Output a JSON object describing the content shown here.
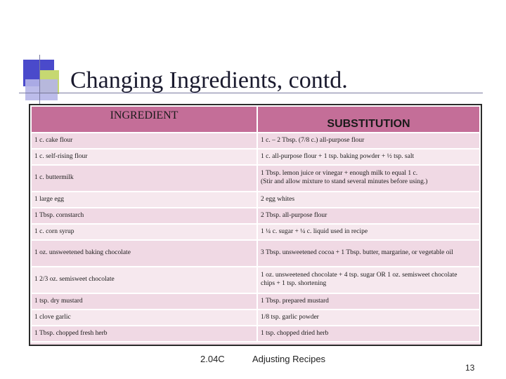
{
  "slide": {
    "title": "Changing Ingredients, contd.",
    "footer_code": "2.04C",
    "footer_title": "Adjusting Recipes",
    "page_number": "13"
  },
  "table": {
    "headers": {
      "ingredient": "INGREDIENT",
      "substitution": "SUBSTITUTION"
    },
    "rows": [
      {
        "ingredient": "1 c. cake flour",
        "substitution": "1 c. – 2 Tbsp. (7/8 c.) all-purpose flour",
        "substitution_line2": ""
      },
      {
        "ingredient": "1 c. self-rising flour",
        "substitution": "1 c. all-purpose flour + 1 tsp. baking powder + ½ tsp. salt",
        "substitution_line2": ""
      },
      {
        "ingredient": "1 c. buttermilk",
        "substitution": "1 Tbsp. lemon juice or vinegar + enough milk to equal 1 c.",
        "substitution_line2": "(Stir and allow mixture to stand several minutes before using.)"
      },
      {
        "ingredient": "1 large egg",
        "substitution": "2 egg whites",
        "substitution_line2": ""
      },
      {
        "ingredient": "1 Tbsp. cornstarch",
        "substitution": "2 Tbsp. all-purpose flour",
        "substitution_line2": ""
      },
      {
        "ingredient": "1 c. corn syrup",
        "substitution": "1 ¼ c. sugar + ¼ c. liquid used in recipe",
        "substitution_line2": ""
      },
      {
        "ingredient": "1 oz. unsweetened baking chocolate",
        "substitution": "3 Tbsp. unsweetened cocoa + 1 Tbsp. butter, margarine, or vegetable oil",
        "substitution_line2": ""
      },
      {
        "ingredient": "1 2/3 oz. semisweet chocolate",
        "substitution": "1 oz. unsweetened chocolate + 4 tsp. sugar OR 1 oz. semisweet chocolate",
        "substitution_line2": "chips + 1 tsp. shortening"
      },
      {
        "ingredient": "1 tsp. dry mustard",
        "substitution": "1 Tbsp. prepared mustard",
        "substitution_line2": ""
      },
      {
        "ingredient": "1 clove garlic",
        "substitution": "1/8 tsp. garlic powder",
        "substitution_line2": ""
      },
      {
        "ingredient": "1 Tbsp. chopped fresh herb",
        "substitution": "1 tsp. chopped dried herb",
        "substitution_line2": ""
      }
    ]
  },
  "colors": {
    "header_bg": "#c46e98",
    "row_bg": "#f0d9e4",
    "accent_blue": "#4a4acb",
    "accent_green": "#c6d872"
  }
}
